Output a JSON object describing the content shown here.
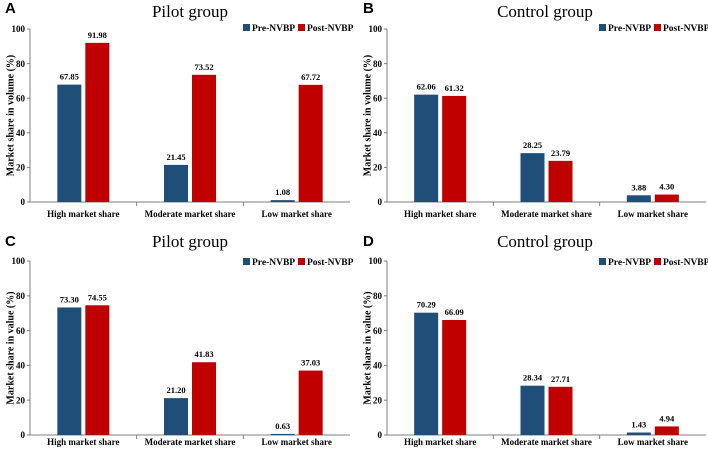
{
  "colors": {
    "pre": "#1f4e79",
    "post": "#c00000",
    "axis": "#7f7f7f"
  },
  "chart_data": [
    {
      "panel": "A",
      "type": "bar",
      "title": "Pilot group",
      "xlabel": "",
      "ylabel": "Market share in volume (%)",
      "ylim": [
        0,
        100
      ],
      "yticks": [
        "0",
        "20",
        "40",
        "60",
        "80",
        "100"
      ],
      "legend": "top-right",
      "categories": [
        "High market share",
        "Moderate market share",
        "Low market share"
      ],
      "series": [
        {
          "name": "Pre-NVBP",
          "values": [
            67.85,
            21.45,
            1.08
          ],
          "labels": [
            "67.85",
            "21.45",
            "1.08"
          ]
        },
        {
          "name": "Post-NVBP",
          "values": [
            91.98,
            73.52,
            67.72
          ],
          "labels": [
            "91.98",
            "73.52",
            "67.72"
          ]
        }
      ]
    },
    {
      "panel": "B",
      "type": "bar",
      "title": "Control group",
      "xlabel": "",
      "ylabel": "Market share in volume (%)",
      "ylim": [
        0,
        100
      ],
      "yticks": [
        "0",
        "20",
        "40",
        "60",
        "80",
        "100"
      ],
      "legend": "top-right",
      "categories": [
        "High market share",
        "Moderate market share",
        "Low market share"
      ],
      "series": [
        {
          "name": "Pre-NVBP",
          "values": [
            62.06,
            28.25,
            3.88
          ],
          "labels": [
            "62.06",
            "28.25",
            "3.88"
          ]
        },
        {
          "name": "Post-NVBP",
          "values": [
            61.32,
            23.79,
            4.3
          ],
          "labels": [
            "61.32",
            "23.79",
            "4.30"
          ]
        }
      ]
    },
    {
      "panel": "C",
      "type": "bar",
      "title": "Pilot group",
      "xlabel": "",
      "ylabel": "Market share in value (%)",
      "ylim": [
        0,
        100
      ],
      "yticks": [
        "0",
        "20",
        "40",
        "60",
        "80",
        "100"
      ],
      "legend": "top-right",
      "categories": [
        "High market share",
        "Moderate market share",
        "Low market share"
      ],
      "series": [
        {
          "name": "Pre-NVBP",
          "values": [
            73.3,
            21.2,
            0.63
          ],
          "labels": [
            "73.30",
            "21.20",
            "0.63"
          ]
        },
        {
          "name": "Post-NVBP",
          "values": [
            74.55,
            41.83,
            37.03
          ],
          "labels": [
            "74.55",
            "41.83",
            "37.03"
          ]
        }
      ]
    },
    {
      "panel": "D",
      "type": "bar",
      "title": "Control group",
      "xlabel": "",
      "ylabel": "Market share in value (%)",
      "ylim": [
        0,
        100
      ],
      "yticks": [
        "0",
        "20",
        "40",
        "60",
        "80",
        "100"
      ],
      "legend": "top-right",
      "categories": [
        "High market share",
        "Moderate market share",
        "Low market share"
      ],
      "series": [
        {
          "name": "Pre-NVBP",
          "values": [
            70.29,
            28.34,
            1.43
          ],
          "labels": [
            "70.29",
            "28.34",
            "1.43"
          ]
        },
        {
          "name": "Post-NVBP",
          "values": [
            66.09,
            27.71,
            4.94
          ],
          "labels": [
            "66.09",
            "27.71",
            "4.94"
          ]
        }
      ]
    }
  ]
}
